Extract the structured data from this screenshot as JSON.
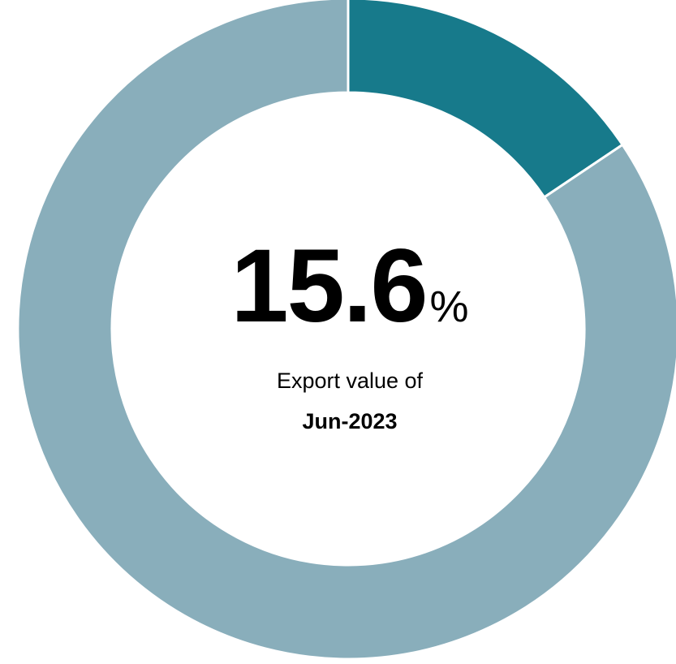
{
  "chart_data": {
    "type": "pie",
    "donut": true,
    "slices": [
      {
        "value": 15.6,
        "color": "#177a8b"
      },
      {
        "value": 84.4,
        "color": "#89aebb"
      }
    ],
    "center_value": "15.6",
    "center_unit": "%",
    "caption_line1": "Export value of",
    "caption_line2": "Jun-2023"
  }
}
